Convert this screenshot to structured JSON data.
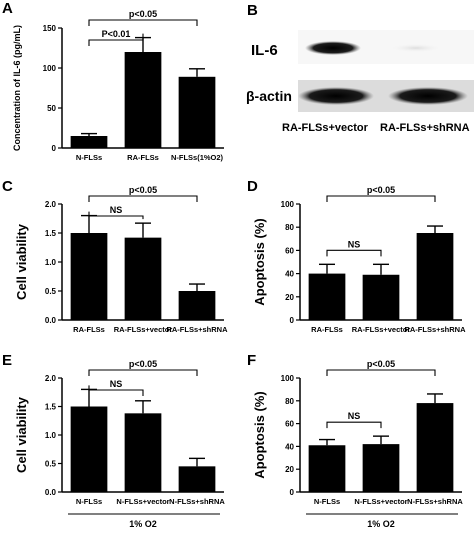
{
  "panel_labels": {
    "A": "A",
    "B": "B",
    "C": "C",
    "D": "D",
    "E": "E",
    "F": "F"
  },
  "blot": {
    "rows": [
      "IL-6",
      "β-actin"
    ],
    "lanes": [
      "RA-FLSs+vector",
      "RA-FLSs+shRNA"
    ]
  },
  "chart_data": [
    {
      "id": "A",
      "type": "bar",
      "categories": [
        "N-FLSs",
        "RA-FLSs",
        "N-FLSs(1%O2)"
      ],
      "values": [
        15,
        120,
        89
      ],
      "errors": [
        3,
        18,
        10
      ],
      "ylabel": "Concentration of IL-6 (pg/mL)",
      "ylim": [
        0,
        150
      ],
      "yticks": [
        "0",
        "50",
        "100",
        "150"
      ],
      "group_label": "",
      "brackets": [
        {
          "from": 0,
          "to": 1,
          "label": "P<0.01",
          "level": 1
        },
        {
          "from": 0,
          "to": 2,
          "label": "p<0.05",
          "level": 2
        }
      ]
    },
    {
      "id": "C",
      "type": "bar",
      "categories": [
        "RA-FLSs",
        "RA-FLSs+vector",
        "RA-FLSs+shRNA"
      ],
      "values": [
        1.5,
        1.42,
        0.5
      ],
      "errors": [
        0.3,
        0.25,
        0.12
      ],
      "ylabel": "Cell viability",
      "ylim": [
        0,
        2.0
      ],
      "yticks": [
        "0.0",
        "0.5",
        "1.0",
        "1.5",
        "2.0"
      ],
      "group_label": "",
      "brackets": [
        {
          "from": 0,
          "to": 1,
          "label": "NS",
          "level": 1
        },
        {
          "from": 0,
          "to": 2,
          "label": "p<0.05",
          "level": 2
        }
      ]
    },
    {
      "id": "D",
      "type": "bar",
      "categories": [
        "RA-FLSs",
        "RA-FLSs+vector",
        "RA-FLSs+shRNA"
      ],
      "values": [
        40,
        39,
        75
      ],
      "errors": [
        8,
        9,
        6
      ],
      "ylabel": "Apoptosis (%)",
      "ylim": [
        0,
        100
      ],
      "yticks": [
        "0",
        "20",
        "40",
        "60",
        "80",
        "100"
      ],
      "group_label": "",
      "brackets": [
        {
          "from": 0,
          "to": 1,
          "label": "NS",
          "level": 1
        },
        {
          "from": 0,
          "to": 2,
          "label": "p<0.05",
          "level": 2
        }
      ]
    },
    {
      "id": "E",
      "type": "bar",
      "categories": [
        "N-FLSs",
        "N-FLSs+vector",
        "N-FLSs+shRNA"
      ],
      "values": [
        1.5,
        1.38,
        0.45
      ],
      "errors": [
        0.3,
        0.22,
        0.14
      ],
      "ylabel": "Cell viability",
      "ylim": [
        0,
        2.0
      ],
      "yticks": [
        "0.0",
        "0.5",
        "1.0",
        "1.5",
        "2.0"
      ],
      "group_label": "1% O2",
      "brackets": [
        {
          "from": 0,
          "to": 1,
          "label": "NS",
          "level": 1
        },
        {
          "from": 0,
          "to": 2,
          "label": "p<0.05",
          "level": 2
        }
      ]
    },
    {
      "id": "F",
      "type": "bar",
      "categories": [
        "N-FLSs",
        "N-FLSs+vector",
        "N-FLSs+shRNA"
      ],
      "values": [
        41,
        42,
        78
      ],
      "errors": [
        5,
        7,
        8
      ],
      "ylabel": "Apoptosis (%)",
      "ylim": [
        0,
        100
      ],
      "yticks": [
        "0",
        "20",
        "40",
        "60",
        "80",
        "100"
      ],
      "group_label": "1% O2",
      "brackets": [
        {
          "from": 0,
          "to": 1,
          "label": "NS",
          "level": 1
        },
        {
          "from": 0,
          "to": 2,
          "label": "p<0.05",
          "level": 2
        }
      ]
    }
  ]
}
